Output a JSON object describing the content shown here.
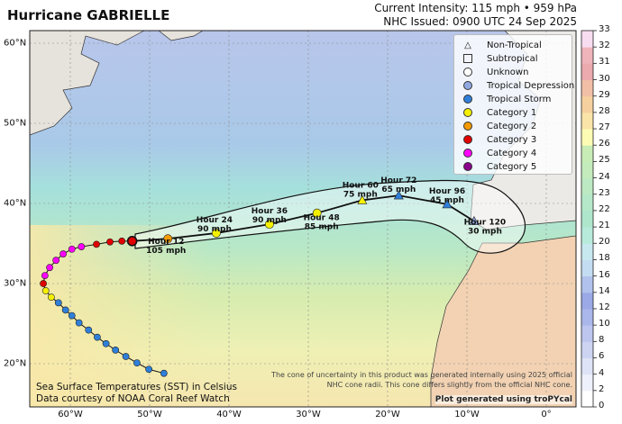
{
  "header": {
    "title": "Hurricane GABRIELLE",
    "intensity": "Current Intensity: 115 mph • 959 hPa",
    "issued": "NHC Issued: 0900 UTC 24 Sep 2025"
  },
  "legend": [
    {
      "label": "Non-Tropical",
      "symbol": "triangle-outline",
      "color": "#ffffff"
    },
    {
      "label": "Subtropical",
      "symbol": "square-outline",
      "color": "#ffffff"
    },
    {
      "label": "Unknown",
      "symbol": "circle-outline",
      "color": "#ffffff"
    },
    {
      "label": "Tropical Depression",
      "symbol": "circle",
      "color": "#8fa8e0"
    },
    {
      "label": "Tropical Storm",
      "symbol": "circle",
      "color": "#2f7fd8"
    },
    {
      "label": "Category 1",
      "symbol": "circle",
      "color": "#f4f000"
    },
    {
      "label": "Category 2",
      "symbol": "circle",
      "color": "#f39a00"
    },
    {
      "label": "Category 3",
      "symbol": "circle",
      "color": "#e00000"
    },
    {
      "label": "Category 4",
      "symbol": "circle",
      "color": "#ff00ff"
    },
    {
      "label": "Category 5",
      "symbol": "circle",
      "color": "#8b008b"
    }
  ],
  "axes": {
    "lat_labels": [
      "60°N",
      "50°N",
      "40°N",
      "30°N",
      "20°N"
    ],
    "lats": [
      60,
      50,
      40,
      30,
      20
    ],
    "lon_labels": [
      "60°W",
      "50°W",
      "40°W",
      "30°W",
      "20°W",
      "10°W",
      "0°"
    ],
    "lons": [
      -60,
      -50,
      -40,
      -30,
      -20,
      -10,
      0
    ]
  },
  "colorbar": {
    "ticks": [
      "0",
      "2",
      "4",
      "6",
      "8",
      "10",
      "12",
      "14",
      "16",
      "18",
      "20",
      "21",
      "22",
      "23",
      "24",
      "25",
      "26",
      "27",
      "28",
      "29",
      "30",
      "31",
      "32",
      "33"
    ],
    "colors": [
      "#ffffff",
      "#eef0fb",
      "#dfe3f7",
      "#cdd4f2",
      "#bcc6ee",
      "#aab7ea",
      "#9ba9e6",
      "#b1c2ec",
      "#c4dcf2",
      "#c8e8f0",
      "#b8eadb",
      "#aee6cc",
      "#b4e8c8",
      "#bde9c2",
      "#c4ebbc",
      "#c8ecb6",
      "#fdfcb4",
      "#fae4a8",
      "#f6d09e",
      "#f1bfa6",
      "#ebaaae",
      "#eeb4ba",
      "#f8dcef"
    ]
  },
  "past_track": [
    {
      "lat": 18.8,
      "lon": -48.2,
      "cat": "Tropical Storm"
    },
    {
      "lat": 19.3,
      "lon": -50.1,
      "cat": "Tropical Storm"
    },
    {
      "lat": 20.1,
      "lon": -51.6,
      "cat": "Tropical Storm"
    },
    {
      "lat": 20.9,
      "lon": -53.0,
      "cat": "Tropical Storm"
    },
    {
      "lat": 21.7,
      "lon": -54.3,
      "cat": "Tropical Storm"
    },
    {
      "lat": 22.5,
      "lon": -55.5,
      "cat": "Tropical Storm"
    },
    {
      "lat": 23.3,
      "lon": -56.6,
      "cat": "Tropical Storm"
    },
    {
      "lat": 24.2,
      "lon": -57.7,
      "cat": "Tropical Storm"
    },
    {
      "lat": 25.1,
      "lon": -58.9,
      "cat": "Tropical Storm"
    },
    {
      "lat": 26.0,
      "lon": -59.8,
      "cat": "Tropical Storm"
    },
    {
      "lat": 26.7,
      "lon": -60.6,
      "cat": "Tropical Storm"
    },
    {
      "lat": 27.6,
      "lon": -61.5,
      "cat": "Tropical Storm"
    },
    {
      "lat": 28.3,
      "lon": -62.4,
      "cat": "Category 1"
    },
    {
      "lat": 29.1,
      "lon": -63.1,
      "cat": "Category 1"
    },
    {
      "lat": 30.0,
      "lon": -63.4,
      "cat": "Category 3"
    },
    {
      "lat": 31.0,
      "lon": -63.2,
      "cat": "Category 4"
    },
    {
      "lat": 32.0,
      "lon": -62.6,
      "cat": "Category 4"
    },
    {
      "lat": 32.9,
      "lon": -61.8,
      "cat": "Category 4"
    },
    {
      "lat": 33.7,
      "lon": -60.9,
      "cat": "Category 4"
    },
    {
      "lat": 34.3,
      "lon": -59.8,
      "cat": "Category 4"
    },
    {
      "lat": 34.6,
      "lon": -58.6,
      "cat": "Category 4"
    },
    {
      "lat": 34.9,
      "lon": -56.7,
      "cat": "Category 3"
    },
    {
      "lat": 35.2,
      "lon": -55.0,
      "cat": "Category 3"
    },
    {
      "lat": 35.3,
      "lon": -53.5,
      "cat": "Category 3"
    }
  ],
  "current_position": {
    "lat": 35.3,
    "lon": -52.2,
    "cat": "Category 3"
  },
  "forecast": [
    {
      "hour_label": "Hour 12",
      "wind": "105 mph",
      "lat": 35.6,
      "lon": -47.7,
      "cat": "Category 2",
      "symbol": "circle"
    },
    {
      "hour_label": "Hour 24",
      "wind": "90 mph",
      "lat": 36.3,
      "lon": -41.6,
      "cat": "Category 1",
      "symbol": "circle"
    },
    {
      "hour_label": "Hour 36",
      "wind": "90 mph",
      "lat": 37.4,
      "lon": -34.9,
      "cat": "Category 1",
      "symbol": "circle"
    },
    {
      "hour_label": "Hour 48",
      "wind": "85 mph",
      "lat": 38.8,
      "lon": -28.9,
      "cat": "Category 1",
      "symbol": "circle"
    },
    {
      "hour_label": "Hour 60",
      "wind": "75 mph",
      "lat": 40.4,
      "lon": -23.2,
      "cat": "Category 1",
      "symbol": "triangle"
    },
    {
      "hour_label": "Hour 72",
      "wind": "65 mph",
      "lat": 41.0,
      "lon": -18.6,
      "cat": "Tropical Storm",
      "symbol": "triangle"
    },
    {
      "hour_label": "Hour 96",
      "wind": "45 mph",
      "lat": 39.9,
      "lon": -12.5,
      "cat": "Tropical Storm",
      "symbol": "triangle"
    },
    {
      "hour_label": "Hour 120",
      "wind": "30 mph",
      "lat": 37.8,
      "lon": -9.1,
      "cat": "Tropical Depression",
      "symbol": "triangle"
    }
  ],
  "footer": {
    "cone_note_1": "The cone of uncertainty in this product was generated internally using 2025 official",
    "cone_note_2": "NHC cone radii. This cone differs slightly from the official NHC cone.",
    "sst_line_1": "Sea Surface Temperatures (SST) in Celsius",
    "sst_line_2": "Data courtesy of NOAA Coral Reef Watch",
    "credit": "Plot generated using troPYcal"
  }
}
